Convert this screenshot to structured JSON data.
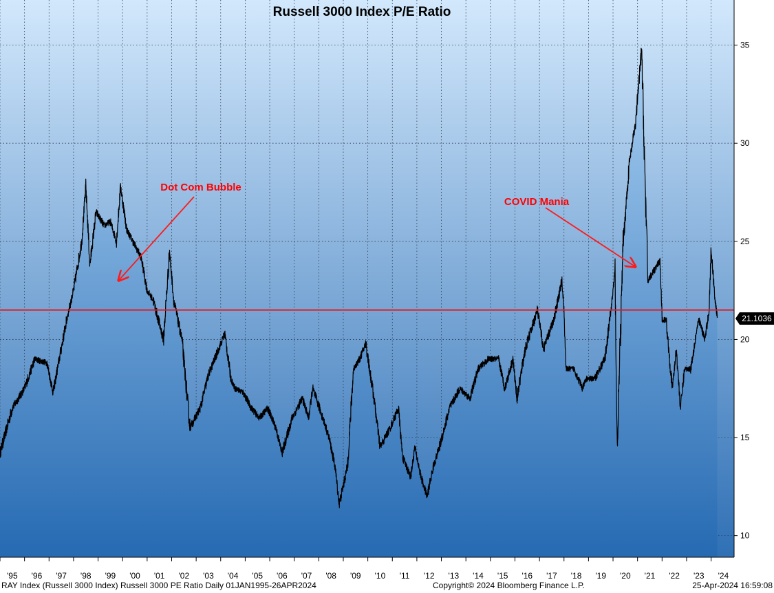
{
  "chart_data": {
    "type": "line",
    "title": "Russell 3000 Index P/E Ratio",
    "xlabel": "",
    "ylabel": "",
    "x_range": [
      "1995-01-01",
      "2024-04-26"
    ],
    "ylim": [
      8.9,
      37.3
    ],
    "yticks": [
      10,
      15,
      20,
      25,
      30,
      35
    ],
    "xtick_labels": [
      "'95",
      "'96",
      "'97",
      "'98",
      "'99",
      "'00",
      "'01",
      "'02",
      "'03",
      "'04",
      "'05",
      "'06",
      "'07",
      "'08",
      "'09",
      "'10",
      "'11",
      "'12",
      "'13",
      "'14",
      "'15",
      "'16",
      "'17",
      "'18",
      "'19",
      "'20",
      "'21",
      "'22",
      "'23",
      "'24"
    ],
    "grid": true,
    "series": [
      {
        "name": "Russell 3000 PE Ratio",
        "color": "#000000",
        "x": [
          "1995-01",
          "1995-07",
          "1996-01",
          "1996-06",
          "1996-12",
          "1997-03",
          "1997-06",
          "1997-10",
          "1998-01",
          "1998-05",
          "1998-07",
          "1998-09",
          "1998-12",
          "1999-04",
          "1999-07",
          "1999-10",
          "1999-12",
          "2000-03",
          "2000-06",
          "2000-10",
          "2001-01",
          "2001-04",
          "2001-09",
          "2001-12",
          "2002-02",
          "2002-06",
          "2002-10",
          "2003-03",
          "2003-07",
          "2003-12",
          "2004-03",
          "2004-06",
          "2004-08",
          "2004-12",
          "2005-04",
          "2005-08",
          "2005-12",
          "2006-04",
          "2006-07",
          "2006-12",
          "2007-05",
          "2007-08",
          "2007-10",
          "2008-03",
          "2008-06",
          "2008-09",
          "2008-11",
          "2009-03",
          "2009-06",
          "2009-09",
          "2009-12",
          "2010-04",
          "2010-07",
          "2010-12",
          "2011-04",
          "2011-06",
          "2011-10",
          "2011-12",
          "2012-03",
          "2012-06",
          "2012-09",
          "2012-12",
          "2013-05",
          "2013-10",
          "2014-03",
          "2014-07",
          "2014-12",
          "2015-05",
          "2015-08",
          "2015-12",
          "2016-02",
          "2016-06",
          "2016-12",
          "2017-03",
          "2017-08",
          "2017-12",
          "2018-01",
          "2018-02",
          "2018-06",
          "2018-10",
          "2018-12",
          "2019-04",
          "2019-09",
          "2019-12",
          "2020-02",
          "2020-03",
          "2020-06",
          "2020-09",
          "2020-12",
          "2021-03",
          "2021-06",
          "2021-09",
          "2021-12",
          "2022-01",
          "2022-03",
          "2022-06",
          "2022-08",
          "2022-10",
          "2022-12",
          "2023-03",
          "2023-06",
          "2023-07",
          "2023-10",
          "2023-12",
          "2024-01",
          "2024-03",
          "2024-04"
        ],
        "values": [
          14.2,
          16.5,
          17.5,
          19.0,
          18.8,
          17.3,
          19.0,
          21.2,
          22.5,
          25.0,
          27.8,
          23.8,
          26.5,
          25.8,
          26.0,
          25.0,
          27.8,
          25.6,
          25.0,
          24.2,
          22.5,
          22.0,
          20.0,
          24.5,
          22.0,
          20.0,
          15.5,
          16.5,
          18.2,
          19.5,
          20.3,
          18.0,
          17.5,
          17.3,
          16.5,
          16.0,
          16.5,
          15.5,
          14.2,
          16.0,
          17.0,
          16.0,
          17.5,
          16.0,
          15.0,
          13.5,
          11.6,
          13.5,
          18.5,
          19.0,
          19.8,
          17.0,
          14.5,
          15.5,
          16.5,
          14.0,
          13.0,
          14.5,
          13.0,
          12.0,
          13.5,
          14.5,
          16.5,
          17.5,
          17.0,
          18.5,
          19.0,
          19.0,
          17.5,
          19.0,
          17.0,
          19.5,
          21.5,
          19.5,
          21.0,
          23.0,
          21.5,
          18.5,
          18.5,
          17.5,
          18.0,
          18.0,
          19.0,
          21.5,
          23.5,
          14.5,
          25.0,
          29.0,
          31.0,
          34.8,
          23.0,
          23.5,
          24.0,
          21.0,
          21.0,
          17.5,
          19.5,
          16.5,
          18.5,
          18.5,
          20.5,
          21.0,
          20.0,
          21.5,
          24.6,
          22.0,
          21.1
        ]
      }
    ],
    "reference_line": {
      "value": 21.5,
      "color": "#e01c24"
    },
    "last_value_label": "21.1036",
    "annotations": [
      {
        "text": "Dot Com Bubble",
        "color": "#ff0000",
        "arrow_to": {
          "date": "1999-11",
          "value": 23.0
        }
      },
      {
        "text": "COVID Mania",
        "color": "#ff0000",
        "arrow_to": {
          "date": "2020-12",
          "value": 23.7
        }
      }
    ]
  },
  "footer": {
    "left": "RAY Index (Russell 3000 Index) Russell 3000 PE Ratio  Daily 01JAN1995-26APR2024",
    "center": "Copyright© 2024 Bloomberg Finance L.P.",
    "right": "25-Apr-2024 16:59:08"
  },
  "colors": {
    "background_top": "#cfe6fb",
    "background_bottom": "#2e72b9",
    "fill_top": "#a5cbef",
    "fill_bottom": "#2869b0",
    "axis_panel": "#ffffff"
  }
}
